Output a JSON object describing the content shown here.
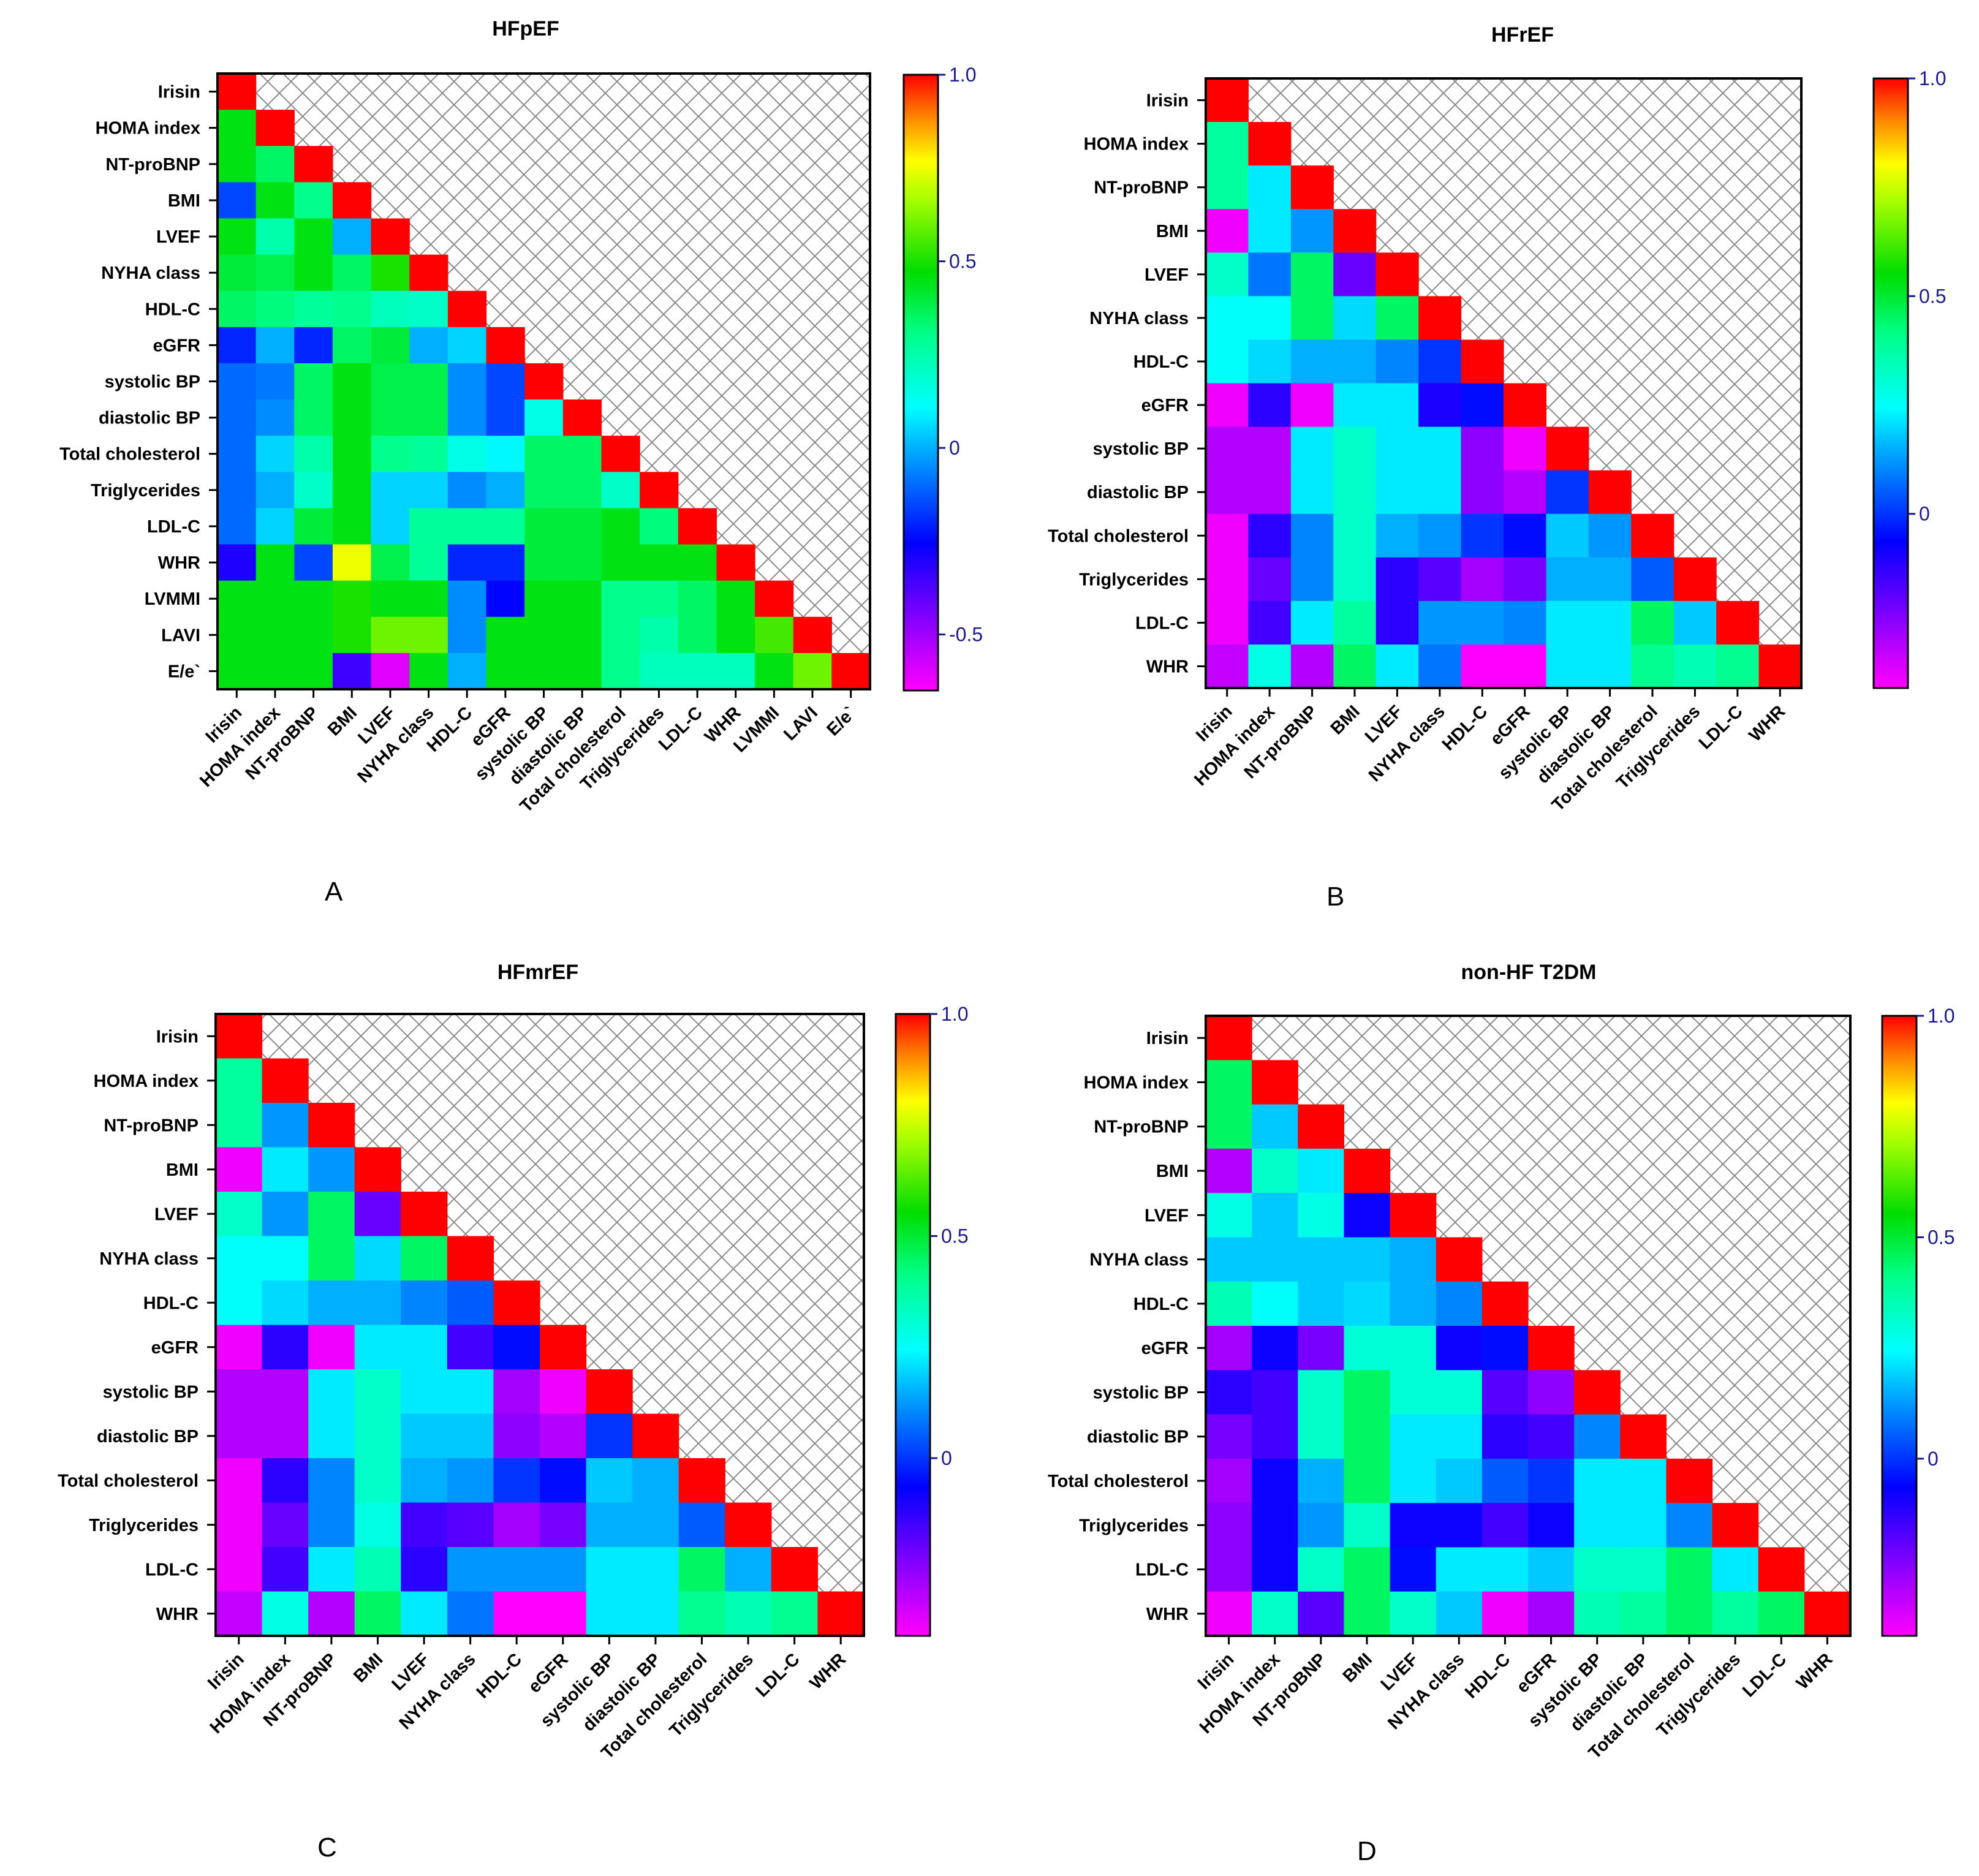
{
  "figure": {
    "background": "#ffffff",
    "text_color": "#000000",
    "colorbar_tick_color": "#1a1a8c",
    "upper_hatch": "crosshatch"
  },
  "chart_data": [
    {
      "id": "A",
      "type": "heatmap",
      "title": "HFpEF",
      "panel_label": "A",
      "labels": [
        "Irisin",
        "HOMA index",
        "NT-proBNP",
        "BMI",
        "LVEF",
        "NYHA class",
        "HDL-C",
        "eGFR",
        "systolic BP",
        "diastolic BP",
        "Total cholesterol",
        "Triglycerides",
        "LDL-C",
        "WHR",
        "LVMMI",
        "LAVI",
        "E/e`"
      ],
      "colorbar": {
        "min": -0.65,
        "max": 1.0,
        "ticks": [
          1.0,
          0.5,
          0,
          -0.5
        ],
        "tick_labels": [
          "1.0",
          "0.5",
          "0",
          "-0.5"
        ]
      },
      "values": [
        [
          1
        ],
        [
          0.45,
          1
        ],
        [
          0.45,
          0.35,
          1
        ],
        [
          -0.15,
          0.45,
          0.3,
          1
        ],
        [
          0.45,
          0.25,
          0.45,
          0.0,
          1
        ],
        [
          0.4,
          0.38,
          0.45,
          0.35,
          0.5,
          1
        ],
        [
          0.35,
          0.32,
          0.28,
          0.3,
          0.22,
          0.2,
          1
        ],
        [
          -0.2,
          0.0,
          -0.2,
          0.35,
          0.4,
          0.0,
          0.05,
          1
        ],
        [
          -0.1,
          -0.08,
          0.35,
          0.45,
          0.38,
          0.38,
          -0.05,
          -0.15,
          1
        ],
        [
          -0.1,
          -0.05,
          0.35,
          0.45,
          0.38,
          0.38,
          -0.05,
          -0.15,
          0.15,
          1
        ],
        [
          -0.1,
          0.05,
          0.25,
          0.45,
          0.3,
          0.28,
          0.15,
          0.1,
          0.35,
          0.35,
          1
        ],
        [
          -0.1,
          0.0,
          0.2,
          0.45,
          0.05,
          0.05,
          -0.05,
          0.0,
          0.35,
          0.35,
          0.2,
          1
        ],
        [
          -0.1,
          0.05,
          0.4,
          0.45,
          0.05,
          0.28,
          0.28,
          0.28,
          0.4,
          0.4,
          0.45,
          0.32,
          1
        ],
        [
          -0.3,
          0.45,
          -0.15,
          0.75,
          0.38,
          0.28,
          -0.2,
          -0.2,
          0.4,
          0.4,
          0.45,
          0.45,
          0.45,
          1
        ],
        [
          0.45,
          0.45,
          0.45,
          0.5,
          0.45,
          0.45,
          -0.05,
          -0.25,
          0.45,
          0.45,
          0.3,
          0.3,
          0.35,
          0.45,
          1
        ],
        [
          0.45,
          0.45,
          0.45,
          0.5,
          0.6,
          0.6,
          -0.05,
          0.45,
          0.45,
          0.45,
          0.3,
          0.25,
          0.35,
          0.45,
          0.55,
          1
        ],
        [
          0.45,
          0.45,
          0.45,
          -0.35,
          -0.6,
          0.45,
          0.0,
          0.45,
          0.45,
          0.45,
          0.3,
          0.22,
          0.22,
          0.22,
          0.45,
          0.6,
          1
        ]
      ]
    },
    {
      "id": "B",
      "type": "heatmap",
      "title": "HFrEF",
      "panel_label": "B",
      "labels": [
        "Irisin",
        "HOMA index",
        "NT-proBNP",
        "BMI",
        "LVEF",
        "NYHA class",
        "HDL-C",
        "eGFR",
        "systolic BP",
        "diastolic BP",
        "Total cholesterol",
        "Triglycerides",
        "LDL-C",
        "WHR"
      ],
      "colorbar": {
        "min": -0.4,
        "max": 1.0,
        "ticks": [
          1.0,
          0.5,
          0
        ],
        "tick_labels": [
          "1.0",
          "0.5",
          "0"
        ]
      },
      "values": [
        [
          1
        ],
        [
          0.38,
          1
        ],
        [
          0.38,
          0.22,
          1
        ],
        [
          -0.38,
          0.22,
          0.12,
          1
        ],
        [
          0.32,
          0.08,
          0.45,
          -0.2,
          1
        ],
        [
          0.25,
          0.25,
          0.45,
          0.2,
          0.45,
          1
        ],
        [
          0.25,
          0.2,
          0.15,
          0.15,
          0.1,
          0.0,
          1
        ],
        [
          -0.38,
          -0.12,
          -0.38,
          0.22,
          0.22,
          -0.1,
          -0.05,
          1
        ],
        [
          -0.3,
          -0.3,
          0.22,
          0.32,
          0.22,
          0.22,
          -0.25,
          -0.38,
          1
        ],
        [
          -0.3,
          -0.3,
          0.22,
          0.32,
          0.22,
          0.22,
          -0.25,
          -0.3,
          0.0,
          1
        ],
        [
          -0.38,
          -0.12,
          0.1,
          0.32,
          0.15,
          0.12,
          0.0,
          -0.05,
          0.18,
          0.12,
          1
        ],
        [
          -0.38,
          -0.2,
          0.1,
          0.32,
          -0.12,
          -0.18,
          -0.28,
          -0.22,
          0.15,
          0.15,
          0.05,
          1
        ],
        [
          -0.38,
          -0.15,
          0.22,
          0.38,
          -0.12,
          0.12,
          0.12,
          0.1,
          0.22,
          0.22,
          0.45,
          0.18,
          1
        ],
        [
          -0.32,
          0.28,
          -0.3,
          0.45,
          0.22,
          0.08,
          -0.4,
          -0.4,
          0.22,
          0.22,
          0.4,
          0.35,
          0.4,
          1
        ]
      ]
    },
    {
      "id": "C",
      "type": "heatmap",
      "title": "HFmrEF",
      "panel_label": "C",
      "labels": [
        "Irisin",
        "HOMA index",
        "NT-proBNP",
        "BMI",
        "LVEF",
        "NYHA class",
        "HDL-C",
        "eGFR",
        "systolic BP",
        "diastolic BP",
        "Total cholesterol",
        "Triglycerides",
        "LDL-C",
        "WHR"
      ],
      "colorbar": {
        "min": -0.4,
        "max": 1.0,
        "ticks": [
          1.0,
          0.5,
          0
        ],
        "tick_labels": [
          "1.0",
          "0.5",
          "0"
        ]
      },
      "values": [
        [
          1
        ],
        [
          0.38,
          1
        ],
        [
          0.38,
          0.12,
          1
        ],
        [
          -0.38,
          0.22,
          0.12,
          1
        ],
        [
          0.32,
          0.12,
          0.45,
          -0.2,
          1
        ],
        [
          0.25,
          0.25,
          0.45,
          0.2,
          0.45,
          1
        ],
        [
          0.25,
          0.2,
          0.15,
          0.15,
          0.1,
          0.05,
          1
        ],
        [
          -0.38,
          -0.12,
          -0.38,
          0.22,
          0.22,
          -0.15,
          -0.05,
          1
        ],
        [
          -0.3,
          -0.3,
          0.22,
          0.32,
          0.22,
          0.22,
          -0.28,
          -0.38,
          1
        ],
        [
          -0.3,
          -0.3,
          0.22,
          0.32,
          0.18,
          0.18,
          -0.25,
          -0.3,
          0.0,
          1
        ],
        [
          -0.38,
          -0.12,
          0.1,
          0.32,
          0.15,
          0.12,
          0.0,
          -0.05,
          0.18,
          0.15,
          1
        ],
        [
          -0.38,
          -0.2,
          0.1,
          0.28,
          -0.15,
          -0.18,
          -0.28,
          -0.22,
          0.15,
          0.15,
          0.05,
          1
        ],
        [
          -0.38,
          -0.15,
          0.22,
          0.35,
          -0.12,
          0.12,
          0.12,
          0.12,
          0.22,
          0.22,
          0.45,
          0.15,
          1
        ],
        [
          -0.32,
          0.28,
          -0.3,
          0.45,
          0.22,
          0.08,
          -0.4,
          -0.4,
          0.22,
          0.22,
          0.4,
          0.35,
          0.4,
          1
        ]
      ]
    },
    {
      "id": "D",
      "type": "heatmap",
      "title": "non-HF T2DM",
      "panel_label": "D",
      "labels": [
        "Irisin",
        "HOMA index",
        "NT-proBNP",
        "BMI",
        "LVEF",
        "NYHA class",
        "HDL-C",
        "eGFR",
        "systolic BP",
        "diastolic BP",
        "Total cholesterol",
        "Triglycerides",
        "LDL-C",
        "WHR"
      ],
      "colorbar": {
        "min": -0.4,
        "max": 1.0,
        "ticks": [
          1.0,
          0.5,
          0
        ],
        "tick_labels": [
          "1.0",
          "0.5",
          "0"
        ]
      },
      "values": [
        [
          1
        ],
        [
          0.45,
          1
        ],
        [
          0.45,
          0.18,
          1
        ],
        [
          -0.3,
          0.32,
          0.22,
          1
        ],
        [
          0.28,
          0.18,
          0.28,
          -0.08,
          1
        ],
        [
          0.18,
          0.18,
          0.18,
          0.18,
          0.15,
          1
        ],
        [
          0.35,
          0.25,
          0.18,
          0.2,
          0.15,
          0.1,
          1
        ],
        [
          -0.28,
          -0.08,
          -0.22,
          0.3,
          0.3,
          -0.08,
          -0.05,
          1
        ],
        [
          -0.12,
          -0.15,
          0.32,
          0.45,
          0.3,
          0.3,
          -0.18,
          -0.25,
          1
        ],
        [
          -0.22,
          -0.15,
          0.32,
          0.45,
          0.22,
          0.22,
          -0.12,
          -0.15,
          0.1,
          1
        ],
        [
          -0.28,
          -0.08,
          0.15,
          0.45,
          0.22,
          0.18,
          0.05,
          0.0,
          0.22,
          0.22,
          1
        ],
        [
          -0.25,
          -0.08,
          0.12,
          0.32,
          -0.08,
          -0.08,
          -0.15,
          -0.08,
          0.22,
          0.22,
          0.1,
          1
        ],
        [
          -0.25,
          -0.08,
          0.32,
          0.45,
          -0.05,
          0.22,
          0.22,
          0.18,
          0.32,
          0.32,
          0.45,
          0.22,
          1
        ],
        [
          -0.38,
          0.32,
          -0.18,
          0.45,
          0.32,
          0.18,
          -0.38,
          -0.28,
          0.35,
          0.38,
          0.45,
          0.38,
          0.45,
          1
        ]
      ]
    }
  ]
}
